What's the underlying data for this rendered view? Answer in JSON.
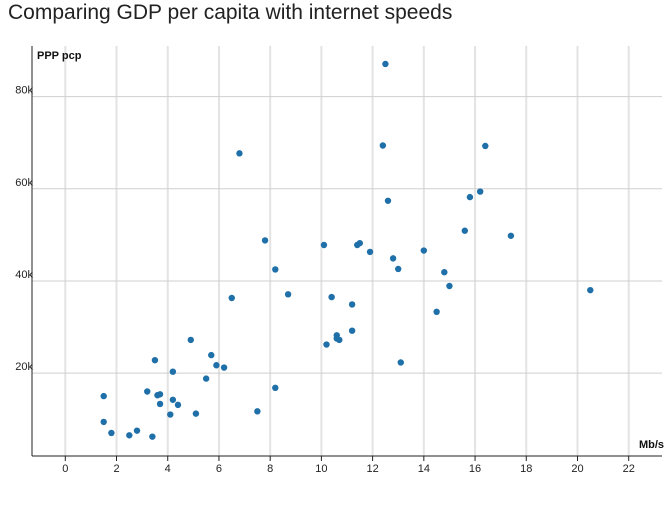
{
  "chart_data": {
    "type": "scatter",
    "title": "Comparing GDP per capita with internet speeds",
    "ylabel": "PPP pcp",
    "xlabel": "Mb/s",
    "xlim": [
      -1.3,
      23.3
    ],
    "ylim": [
      2000,
      91000
    ],
    "x_ticks": [
      0,
      2,
      4,
      6,
      8,
      10,
      12,
      14,
      16,
      18,
      20,
      22
    ],
    "y_ticks": [
      20000,
      40000,
      60000,
      80000
    ],
    "y_tick_labels": [
      "20k",
      "40k",
      "60k",
      "80k"
    ],
    "grid": true,
    "point_color": "#1f6fa8",
    "points": [
      [
        1.5,
        15000
      ],
      [
        1.5,
        9400
      ],
      [
        1.8,
        7000
      ],
      [
        2.5,
        6500
      ],
      [
        2.8,
        7500
      ],
      [
        3.2,
        16000
      ],
      [
        3.4,
        6200
      ],
      [
        3.5,
        22800
      ],
      [
        3.6,
        15200
      ],
      [
        3.7,
        15400
      ],
      [
        3.7,
        13300
      ],
      [
        4.1,
        11000
      ],
      [
        4.2,
        14200
      ],
      [
        4.2,
        20300
      ],
      [
        4.4,
        13100
      ],
      [
        4.9,
        27200
      ],
      [
        5.1,
        11200
      ],
      [
        5.5,
        18800
      ],
      [
        5.7,
        23900
      ],
      [
        5.9,
        21700
      ],
      [
        6.2,
        21200
      ],
      [
        6.5,
        36300
      ],
      [
        6.8,
        67700
      ],
      [
        7.5,
        11700
      ],
      [
        7.8,
        48800
      ],
      [
        8.2,
        42500
      ],
      [
        8.2,
        16800
      ],
      [
        8.7,
        37100
      ],
      [
        10.1,
        47800
      ],
      [
        10.2,
        26200
      ],
      [
        10.4,
        36500
      ],
      [
        10.6,
        28200
      ],
      [
        10.6,
        27500
      ],
      [
        10.7,
        27200
      ],
      [
        11.2,
        34900
      ],
      [
        11.2,
        29200
      ],
      [
        11.4,
        47800
      ],
      [
        11.5,
        48200
      ],
      [
        11.9,
        46300
      ],
      [
        12.4,
        69400
      ],
      [
        12.5,
        87100
      ],
      [
        12.6,
        57400
      ],
      [
        12.8,
        44900
      ],
      [
        13.0,
        42600
      ],
      [
        13.1,
        22300
      ],
      [
        14.0,
        46600
      ],
      [
        14.5,
        33300
      ],
      [
        14.8,
        41900
      ],
      [
        15.0,
        38900
      ],
      [
        15.6,
        50900
      ],
      [
        15.8,
        58200
      ],
      [
        16.2,
        59400
      ],
      [
        16.4,
        69300
      ],
      [
        17.4,
        49800
      ],
      [
        20.5,
        38000
      ]
    ]
  }
}
